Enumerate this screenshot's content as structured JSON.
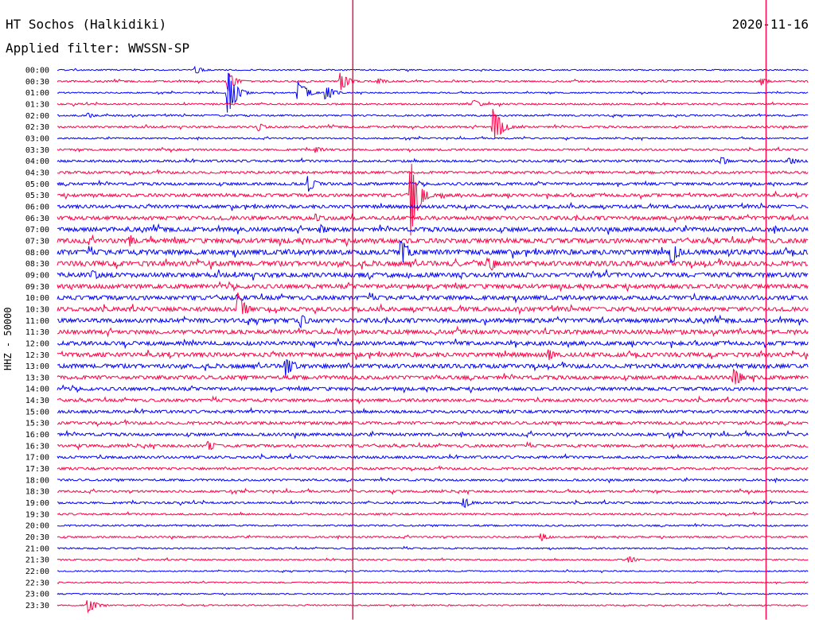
{
  "header": {
    "station": "HT Sochos (Halkidiki)",
    "date": "2020-11-16",
    "filter": "Applied filter: WWSSN-SP"
  },
  "channel_label": "HHZ - 50000",
  "colors": {
    "even_trace": "#0000ff",
    "odd_trace": "#ff0044",
    "text": "#000000"
  },
  "chart_data": {
    "type": "line",
    "title": "HT Sochos (Halkidiki)",
    "subtitle": "Applied filter: WWSSN-SP",
    "date": "2020-11-16",
    "ylabel": "HHZ - 50000",
    "row_minutes": 30,
    "x_range_min": [
      0,
      30
    ],
    "rows": [
      "00:00",
      "00:30",
      "01:00",
      "01:30",
      "02:00",
      "02:30",
      "03:00",
      "03:30",
      "04:00",
      "04:30",
      "05:00",
      "05:30",
      "06:00",
      "06:30",
      "07:00",
      "07:30",
      "08:00",
      "08:30",
      "09:00",
      "09:30",
      "10:00",
      "10:30",
      "11:00",
      "11:30",
      "12:00",
      "12:30",
      "13:00",
      "13:30",
      "14:00",
      "14:30",
      "15:00",
      "15:30",
      "16:00",
      "16:30",
      "17:00",
      "17:30",
      "18:00",
      "18:30",
      "19:00",
      "19:30",
      "20:00",
      "20:30",
      "21:00",
      "21:30",
      "22:00",
      "22:30",
      "23:00",
      "23:30"
    ],
    "noise_level": [
      0.6,
      0.8,
      0.6,
      0.8,
      0.8,
      0.9,
      0.7,
      0.9,
      1.1,
      1.2,
      1.3,
      1.5,
      1.6,
      1.8,
      2.0,
      2.2,
      2.4,
      2.4,
      2.2,
      2.0,
      2.0,
      2.0,
      2.0,
      2.0,
      1.9,
      2.0,
      2.0,
      1.8,
      1.6,
      1.4,
      1.4,
      1.4,
      1.4,
      1.3,
      1.2,
      1.1,
      1.0,
      1.0,
      1.0,
      0.9,
      0.8,
      0.8,
      0.7,
      0.7,
      0.6,
      0.6,
      0.6,
      0.6
    ],
    "events": [
      {
        "row": 0,
        "min": 5.5,
        "amp": 6
      },
      {
        "row": 1,
        "min": 6.8,
        "amp": 14
      },
      {
        "row": 1,
        "min": 11.3,
        "amp": 14
      },
      {
        "row": 1,
        "min": 12.8,
        "amp": 5
      },
      {
        "row": 1,
        "min": 28.1,
        "amp": 5
      },
      {
        "row": 2,
        "min": 6.8,
        "amp": 34
      },
      {
        "row": 2,
        "min": 9.6,
        "amp": 20
      },
      {
        "row": 2,
        "min": 10.7,
        "amp": 12
      },
      {
        "row": 3,
        "min": 16.6,
        "amp": 6
      },
      {
        "row": 4,
        "min": 1.2,
        "amp": 4
      },
      {
        "row": 5,
        "min": 8.0,
        "amp": 6
      },
      {
        "row": 5,
        "min": 17.4,
        "amp": 30
      },
      {
        "row": 7,
        "min": 10.3,
        "amp": 5
      },
      {
        "row": 8,
        "min": 26.5,
        "amp": 6
      },
      {
        "row": 8,
        "min": 29.2,
        "amp": 6
      },
      {
        "row": 10,
        "min": 10.0,
        "amp": 12
      },
      {
        "row": 11,
        "min": 14.1,
        "amp": 55
      },
      {
        "row": 13,
        "min": 10.3,
        "amp": 6
      },
      {
        "row": 14,
        "min": 10.5,
        "amp": 8
      },
      {
        "row": 15,
        "min": 2.9,
        "amp": 8
      },
      {
        "row": 16,
        "min": 13.7,
        "amp": 22
      },
      {
        "row": 16,
        "min": 24.5,
        "amp": 18
      },
      {
        "row": 17,
        "min": 17.3,
        "amp": 10
      },
      {
        "row": 18,
        "min": 1.4,
        "amp": 8
      },
      {
        "row": 21,
        "min": 7.2,
        "amp": 22
      },
      {
        "row": 22,
        "min": 9.7,
        "amp": 10
      },
      {
        "row": 25,
        "min": 19.6,
        "amp": 8
      },
      {
        "row": 26,
        "min": 9.1,
        "amp": 16
      },
      {
        "row": 27,
        "min": 27.0,
        "amp": 14
      },
      {
        "row": 33,
        "min": 6.0,
        "amp": 8
      },
      {
        "row": 38,
        "min": 16.2,
        "amp": 8
      },
      {
        "row": 41,
        "min": 19.3,
        "amp": 6
      },
      {
        "row": 43,
        "min": 22.8,
        "amp": 6
      },
      {
        "row": 47,
        "min": 1.2,
        "amp": 12
      }
    ],
    "vertical_spikes": [
      {
        "min": 11.8,
        "from_row": 0,
        "to_row": 47
      },
      {
        "min": 28.3,
        "from_row": 0,
        "to_row": 47
      }
    ]
  }
}
